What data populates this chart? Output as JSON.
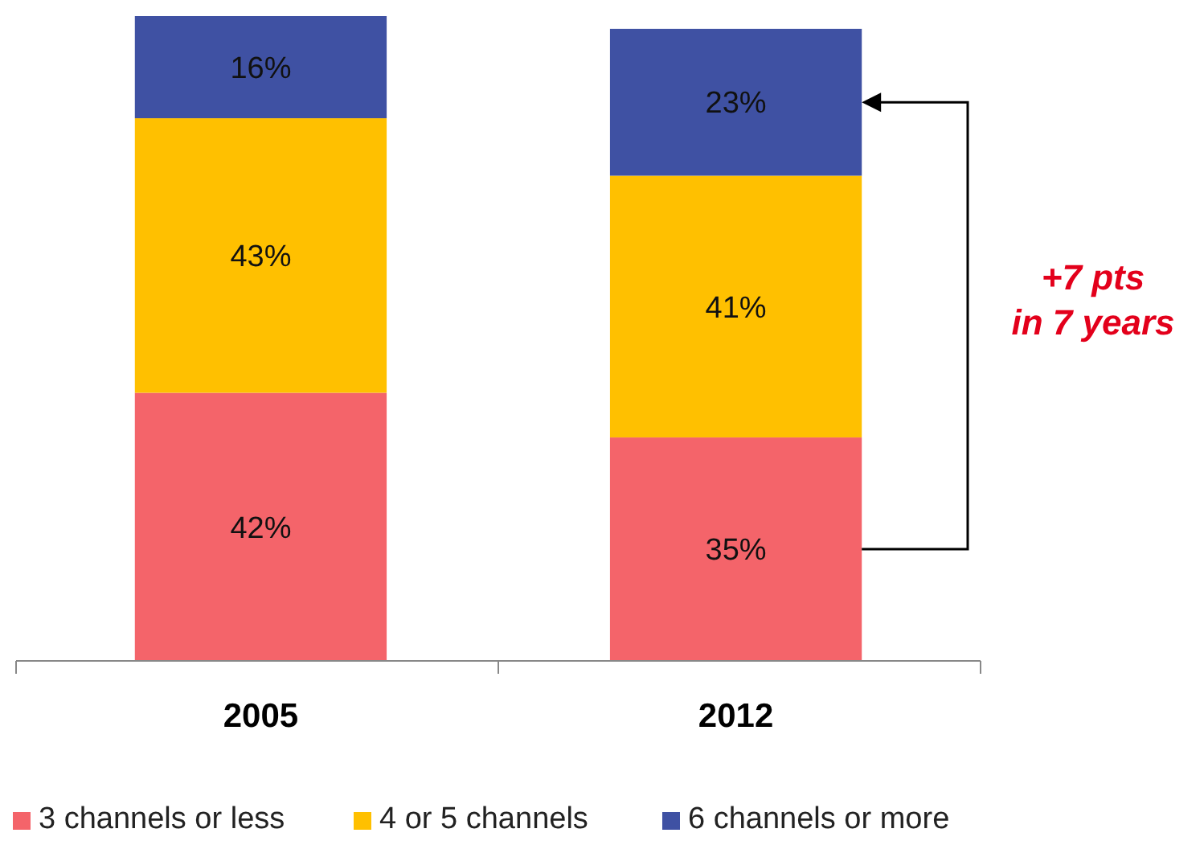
{
  "chart_data": {
    "type": "bar",
    "stacked": true,
    "categories": [
      "2005",
      "2012"
    ],
    "series": [
      {
        "name": "3 channels or less",
        "color": "#f4646a",
        "values": [
          42,
          35
        ],
        "value_labels": [
          "42%",
          "35%"
        ]
      },
      {
        "name": "4 or 5 channels",
        "color": "#ffc000",
        "values": [
          43,
          41
        ],
        "value_labels": [
          "43%",
          "41%"
        ]
      },
      {
        "name": "6 channels or more",
        "color": "#3f51a3",
        "values": [
          16,
          23
        ],
        "value_labels": [
          "16%",
          "23%"
        ]
      }
    ],
    "legend": "bottom",
    "annotations": [
      "+7 pts\nin 7 years"
    ]
  }
}
